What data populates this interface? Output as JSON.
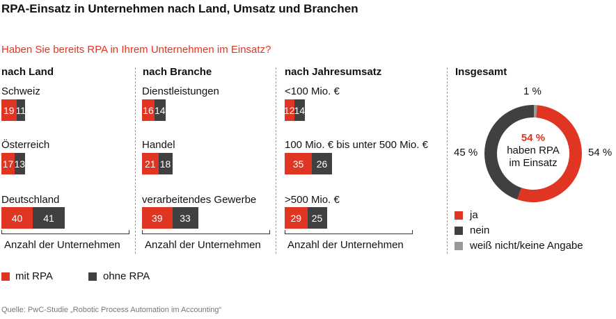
{
  "title": "RPA-Einsatz in Unternehmen nach Land, Umsatz und Branchen",
  "question": "Haben Sie bereits RPA in Ihrem Unternehmen im Einsatz?",
  "axis_label": "Anzahl der Unternehmen",
  "legend": {
    "ja_label": "mit RPA",
    "nein_label": "ohne RPA"
  },
  "source": "Quelle: PwC-Studie „Robotic Process Automation im Accounting“",
  "colors": {
    "ja": "#e03522",
    "nein": "#404040",
    "unknown": "#999999"
  },
  "chart_data": [
    {
      "type": "bar",
      "title": "nach Land",
      "categories": [
        "Schweiz",
        "Österreich",
        "Deutschland"
      ],
      "series": [
        {
          "name": "mit RPA",
          "values": [
            19,
            17,
            40
          ]
        },
        {
          "name": "ohne RPA",
          "values": [
            11,
            13,
            41
          ]
        }
      ],
      "xlabel": "Anzahl der Unternehmen"
    },
    {
      "type": "bar",
      "title": "nach Branche",
      "categories": [
        "Dienstleistungen",
        "Handel",
        "verarbeitendes Gewerbe"
      ],
      "series": [
        {
          "name": "mit RPA",
          "values": [
            16,
            21,
            39
          ]
        },
        {
          "name": "ohne RPA",
          "values": [
            14,
            18,
            33
          ]
        }
      ],
      "xlabel": "Anzahl der Unternehmen"
    },
    {
      "type": "bar",
      "title": "nach Jahresumsatz",
      "categories": [
        "<100 Mio. €",
        "100 Mio. € bis unter 500 Mio. €",
        ">500 Mio. €"
      ],
      "series": [
        {
          "name": "mit RPA",
          "values": [
            12,
            35,
            29
          ]
        },
        {
          "name": "ohne RPA",
          "values": [
            14,
            26,
            25
          ]
        }
      ],
      "xlabel": "Anzahl der Unternehmen"
    },
    {
      "type": "pie",
      "title": "Insgesamt",
      "labels": [
        "ja",
        "nein",
        "weiß nicht/keine Angabe"
      ],
      "values": [
        54,
        45,
        1
      ],
      "value_labels": [
        "54 %",
        "45 %",
        "1 %"
      ],
      "center_value": "54 %",
      "center_text": [
        "haben RPA",
        "im Einsatz"
      ]
    }
  ]
}
